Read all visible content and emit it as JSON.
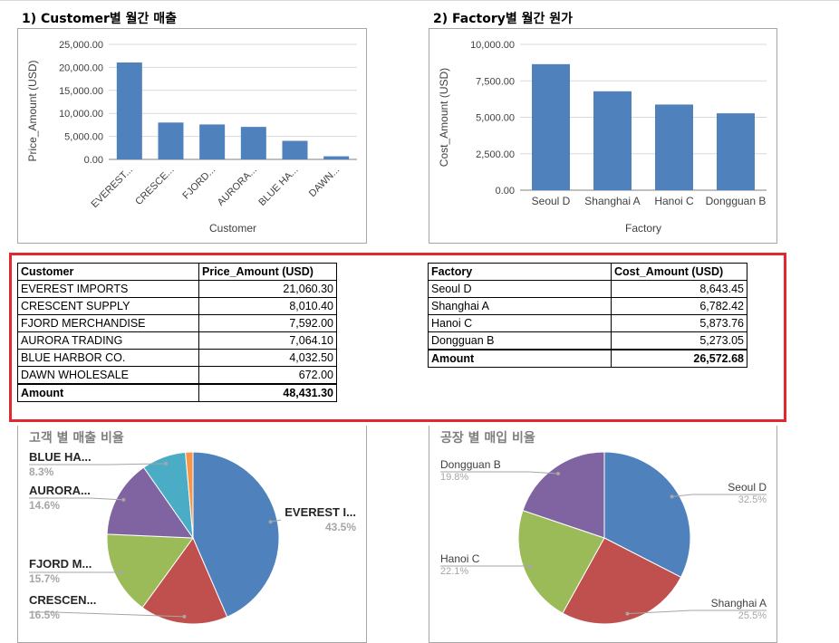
{
  "titles": {
    "customer_chart": "1) Customer별 월간 매출",
    "factory_chart": "2) Factory별 월간 원가",
    "customer_pie": "고객 별 매출 비율",
    "factory_pie": "공장 별 매입 비율"
  },
  "customer_table": {
    "headers": [
      "Customer",
      "Price_Amount (USD)"
    ],
    "rows": [
      [
        "EVEREST IMPORTS",
        "21,060.30"
      ],
      [
        "CRESCENT SUPPLY",
        "8,010.40"
      ],
      [
        "FJORD MERCHANDISE",
        "7,592.00"
      ],
      [
        "AURORA TRADING",
        "7,064.10"
      ],
      [
        "BLUE HARBOR CO.",
        "4,032.50"
      ],
      [
        "DAWN WHOLESALE",
        "672.00"
      ]
    ],
    "total": [
      "Amount",
      "48,431.30"
    ]
  },
  "factory_table": {
    "headers": [
      "Factory",
      "Cost_Amount (USD)"
    ],
    "rows": [
      [
        "Seoul D",
        "8,643.45"
      ],
      [
        "Shanghai A",
        "6,782.42"
      ],
      [
        "Hanoi C",
        "5,873.76"
      ],
      [
        "Dongguan B",
        "5,273.05"
      ]
    ],
    "total": [
      "Amount",
      "26,572.68"
    ]
  },
  "chart_data": [
    {
      "type": "bar",
      "xlabel": "Customer",
      "ylabel": "Price_Amount (USD)",
      "ylim": [
        0,
        25000
      ],
      "yticks": [
        "0.00",
        "5,000.00",
        "10,000.00",
        "15,000.00",
        "20,000.00",
        "25,000.00"
      ],
      "ytick_values": [
        0,
        5000,
        10000,
        15000,
        20000,
        25000
      ],
      "categories": [
        "EVEREST...",
        "CRESCE...",
        "FJORD...",
        "AURORA...",
        "BLUE HA...",
        "DAWN..."
      ],
      "values": [
        21060.3,
        8010.4,
        7592.0,
        7064.1,
        4032.5,
        672.0
      ],
      "color": "#4f81bd",
      "grid": true
    },
    {
      "type": "bar",
      "xlabel": "Factory",
      "ylabel": "Cost_Amount (USD)",
      "ylim": [
        0,
        10000
      ],
      "yticks": [
        "0.00",
        "2,500.00",
        "5,000.00",
        "7,500.00",
        "10,000.00"
      ],
      "ytick_values": [
        0,
        2500,
        5000,
        7500,
        10000
      ],
      "categories": [
        "Seoul D",
        "Shanghai A",
        "Hanoi C",
        "Dongguan B"
      ],
      "values": [
        8643.45,
        6782.42,
        5873.76,
        5273.05
      ],
      "color": "#4f81bd",
      "grid": true
    },
    {
      "type": "pie",
      "slices": [
        {
          "label": "EVEREST I...",
          "percent": "43.5%",
          "value": 43.5,
          "color": "#4f81bd"
        },
        {
          "label": "CRESCEN...",
          "percent": "16.5%",
          "value": 16.5,
          "color": "#c0504d"
        },
        {
          "label": "FJORD M...",
          "percent": "15.7%",
          "value": 15.7,
          "color": "#9bbb59"
        },
        {
          "label": "AURORA...",
          "percent": "14.6%",
          "value": 14.6,
          "color": "#8064a2"
        },
        {
          "label": "BLUE HA...",
          "percent": "8.3%",
          "value": 8.3,
          "color": "#4bacc6"
        },
        {
          "label": "",
          "percent": "",
          "value": 1.4,
          "color": "#f79646"
        }
      ]
    },
    {
      "type": "pie",
      "slices": [
        {
          "label": "Seoul D",
          "percent": "32.5%",
          "value": 32.5,
          "color": "#4f81bd"
        },
        {
          "label": "Shanghai A",
          "percent": "25.5%",
          "value": 25.5,
          "color": "#c0504d"
        },
        {
          "label": "Hanoi C",
          "percent": "22.1%",
          "value": 22.1,
          "color": "#9bbb59"
        },
        {
          "label": "Dongguan B",
          "percent": "19.8%",
          "value": 19.8,
          "color": "#8064a2"
        }
      ]
    }
  ]
}
